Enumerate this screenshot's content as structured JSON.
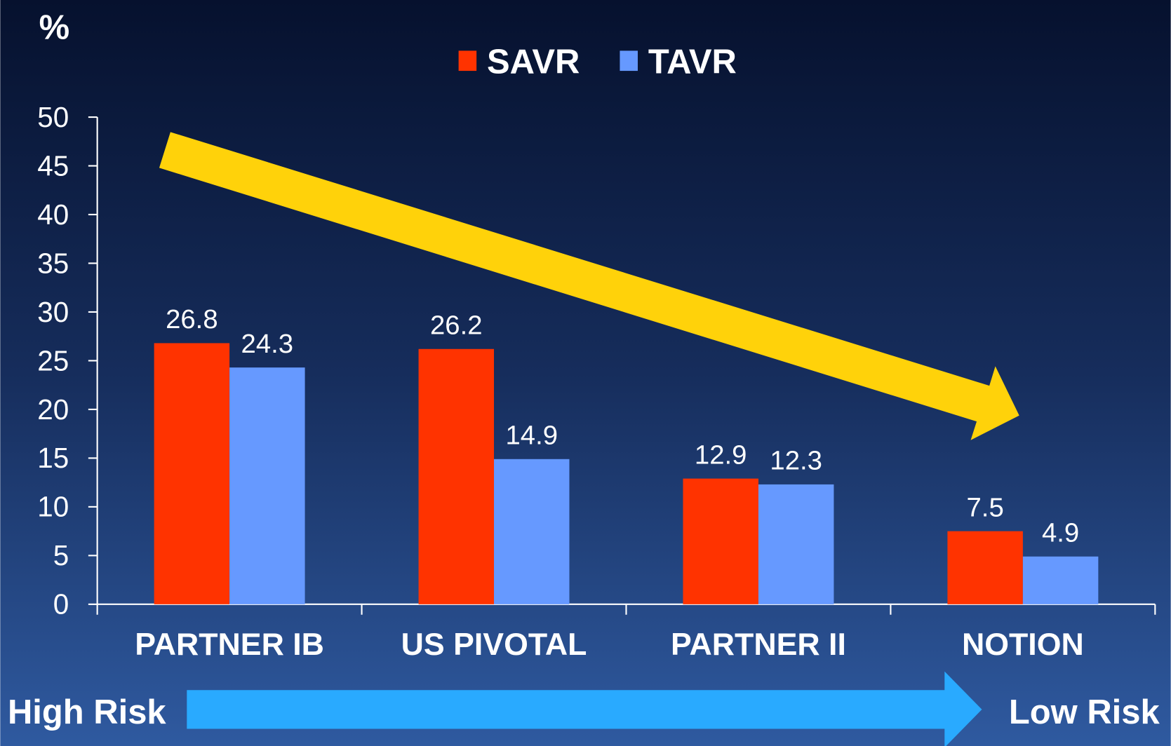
{
  "chart_data": {
    "type": "bar",
    "y_label": "%",
    "categories": [
      "PARTNER IB",
      "US PIVOTAL",
      "PARTNER II",
      "NOTION"
    ],
    "series": [
      {
        "name": "SAVR",
        "color": "#ff3300",
        "values": [
          26.8,
          26.2,
          12.9,
          7.5
        ]
      },
      {
        "name": "TAVR",
        "color": "#6699ff",
        "values": [
          24.3,
          14.9,
          12.3,
          4.9
        ]
      }
    ],
    "ylim": [
      0,
      50
    ],
    "yticks": [
      0,
      5,
      10,
      15,
      20,
      25,
      30,
      35,
      40,
      45,
      50
    ],
    "legend": "top",
    "annotations": [
      "High Risk",
      "Low Risk"
    ]
  }
}
